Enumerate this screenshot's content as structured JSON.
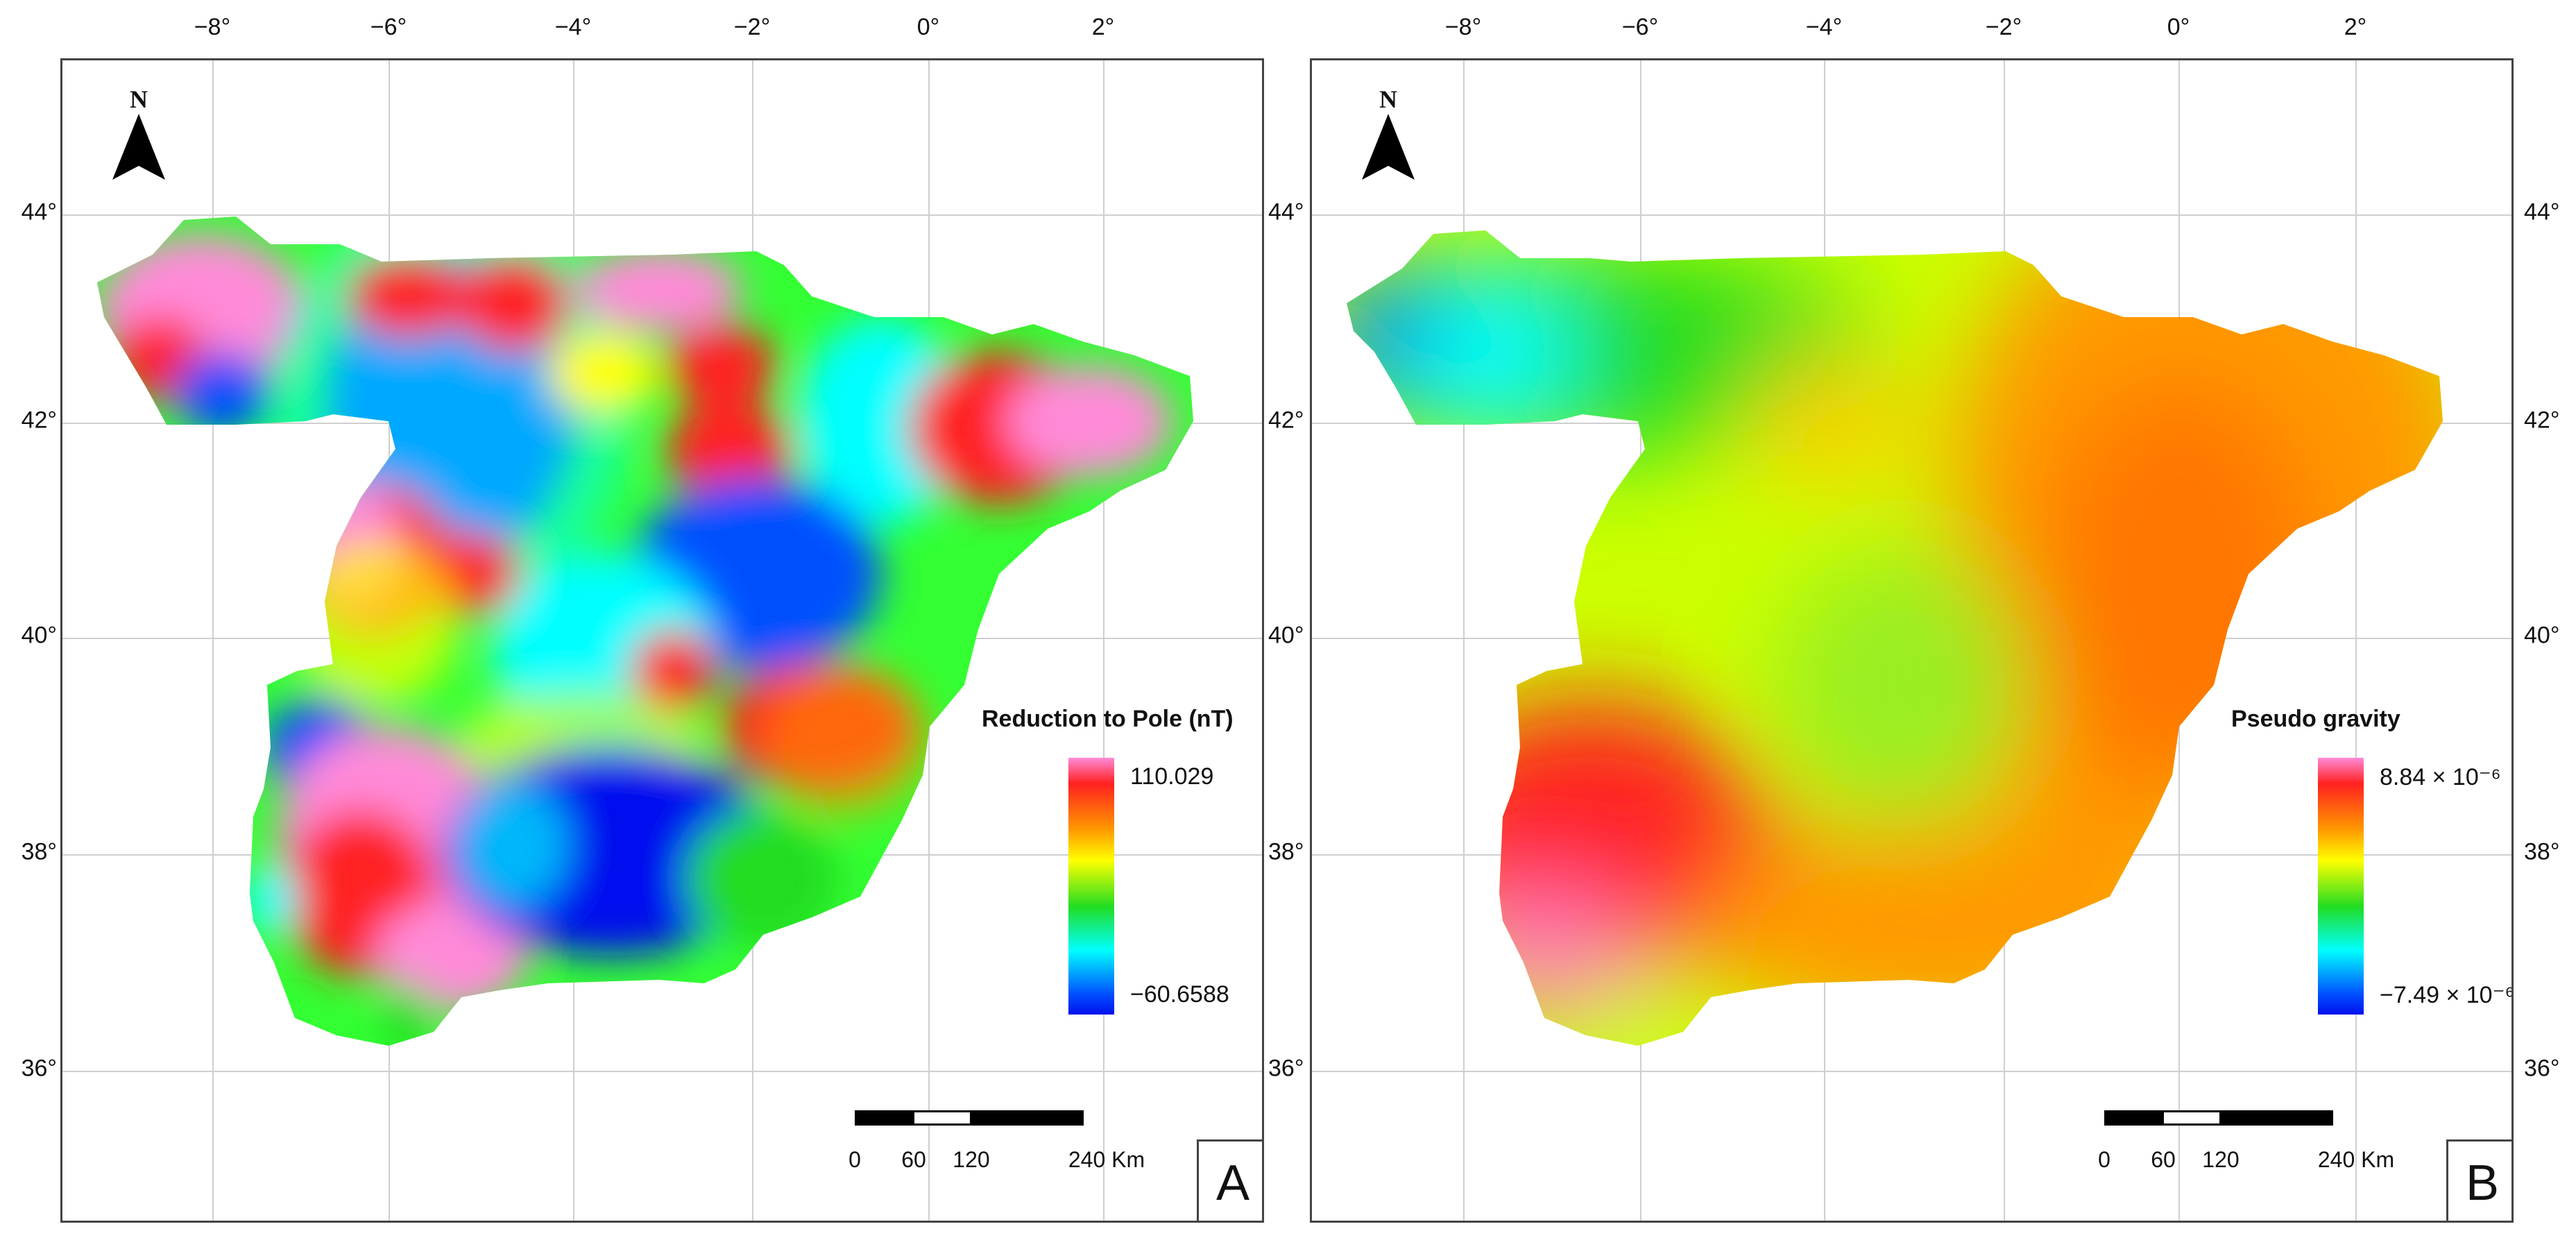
{
  "axes": {
    "longitude_labels": [
      "−8°",
      "−6°",
      "−4°",
      "−2°",
      "0°",
      "2°"
    ],
    "latitude_labels": [
      "44°",
      "42°",
      "40°",
      "38°",
      "36°"
    ]
  },
  "panels": [
    {
      "letter": "A",
      "north_label": "N",
      "legend": {
        "title": "Reduction to Pole (nT)",
        "max": "110.029",
        "min": "−60.6588"
      },
      "scale": {
        "labels": [
          "0",
          "60",
          "120",
          "240 Km"
        ]
      }
    },
    {
      "letter": "B",
      "north_label": "N",
      "legend": {
        "title": "Pseudo gravity",
        "max": "8.84 × 10⁻⁶",
        "min": "−7.49 × 10⁻⁶"
      },
      "scale": {
        "labels": [
          "0",
          "60",
          "120",
          "240 Km"
        ]
      }
    }
  ],
  "colors": {
    "pink": "#ff8ad8",
    "red": "#ff2020",
    "orange": "#ff9900",
    "yellow": "#ffff00",
    "green": "#22dd22",
    "cyan": "#00ffff",
    "blue": "#0050ff",
    "deep_blue": "#0010ee"
  },
  "icons": [
    "north-arrow-icon"
  ]
}
